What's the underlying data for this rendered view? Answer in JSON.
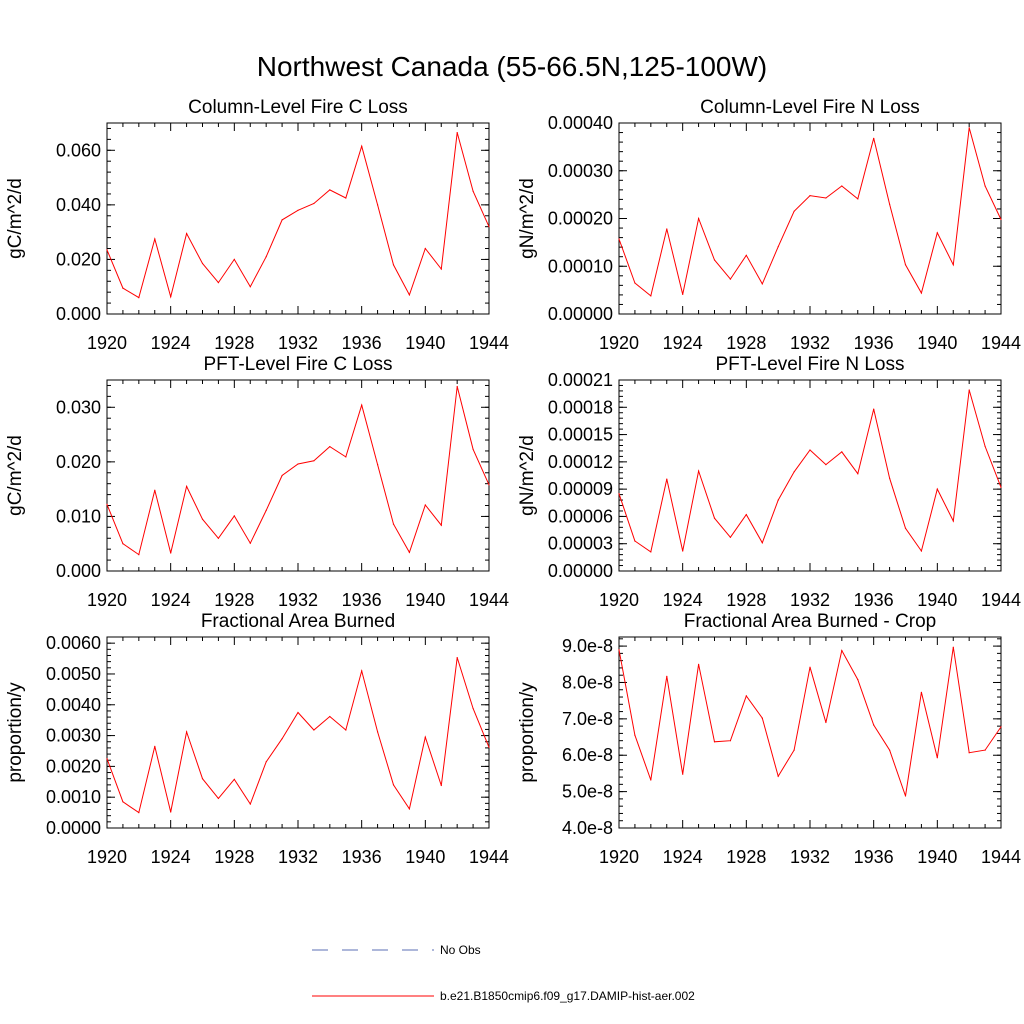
{
  "figure": {
    "title": "Northwest Canada (55-66.5N,125-100W)",
    "legend": [
      {
        "label": "No Obs",
        "color": "#5b6fb5",
        "style": "dashed"
      },
      {
        "label": "b.e21.B1850cmip6.f09_g17.DAMIP-hist-aer.002",
        "color": "#ff0000",
        "style": "solid"
      }
    ]
  },
  "chart_data": [
    {
      "type": "line",
      "title": "Column-Level Fire C Loss",
      "xlabel": "",
      "ylabel": "gC/m^2/d",
      "xlim": [
        1920,
        1944
      ],
      "ylim": [
        0,
        0.07
      ],
      "xticks": [
        1920,
        1924,
        1928,
        1932,
        1936,
        1940,
        1944
      ],
      "yticks": [
        0,
        0.02,
        0.04,
        0.06
      ],
      "ytick_labels": [
        "0.000",
        "0.020",
        "0.040",
        "0.060"
      ],
      "series": [
        {
          "name": "b.e21.B1850cmip6.f09_g17.DAMIP-hist-aer.002",
          "color": "#ff0000",
          "x": [
            1920,
            1921,
            1922,
            1923,
            1924,
            1925,
            1926,
            1927,
            1928,
            1929,
            1930,
            1931,
            1932,
            1933,
            1934,
            1935,
            1936,
            1937,
            1938,
            1939,
            1940,
            1941,
            1942,
            1943,
            1944
          ],
          "y": [
            0.0235,
            0.0095,
            0.006,
            0.0275,
            0.0063,
            0.0295,
            0.0185,
            0.0115,
            0.02,
            0.01,
            0.021,
            0.0345,
            0.038,
            0.0405,
            0.0455,
            0.0425,
            0.0615,
            0.04,
            0.018,
            0.007,
            0.024,
            0.0165,
            0.0665,
            0.045,
            0.032
          ]
        }
      ]
    },
    {
      "type": "line",
      "title": "Column-Level Fire N Loss",
      "xlabel": "",
      "ylabel": "gN/m^2/d",
      "xlim": [
        1920,
        1944
      ],
      "ylim": [
        0,
        0.0004
      ],
      "xticks": [
        1920,
        1924,
        1928,
        1932,
        1936,
        1940,
        1944
      ],
      "yticks": [
        0,
        0.0001,
        0.0002,
        0.0003,
        0.0004
      ],
      "ytick_labels": [
        "0.00000",
        "0.00010",
        "0.00020",
        "0.00030",
        "0.00040"
      ],
      "series": [
        {
          "name": "b.e21.B1850cmip6.f09_g17.DAMIP-hist-aer.002",
          "color": "#ff0000",
          "x": [
            1920,
            1921,
            1922,
            1923,
            1924,
            1925,
            1926,
            1927,
            1928,
            1929,
            1930,
            1931,
            1932,
            1933,
            1934,
            1935,
            1936,
            1937,
            1938,
            1939,
            1940,
            1941,
            1942,
            1943,
            1944
          ],
          "y": [
            0.000157,
            6.5e-05,
            3.8e-05,
            0.000178,
            4.1e-05,
            0.0002,
            0.000113,
            7.3e-05,
            0.000123,
            6.3e-05,
            0.000141,
            0.000215,
            0.000248,
            0.000243,
            0.000268,
            0.000241,
            0.000368,
            0.00023,
            0.000103,
            4.4e-05,
            0.00017,
            0.000103,
            0.00039,
            0.000268,
            0.000198
          ]
        }
      ]
    },
    {
      "type": "line",
      "title": "PFT-Level Fire C Loss",
      "xlabel": "",
      "ylabel": "gC/m^2/d",
      "xlim": [
        1920,
        1944
      ],
      "ylim": [
        0,
        0.035
      ],
      "xticks": [
        1920,
        1924,
        1928,
        1932,
        1936,
        1940,
        1944
      ],
      "yticks": [
        0,
        0.01,
        0.02,
        0.03
      ],
      "ytick_labels": [
        "0.000",
        "0.010",
        "0.020",
        "0.030"
      ],
      "series": [
        {
          "name": "b.e21.B1850cmip6.f09_g17.DAMIP-hist-aer.002",
          "color": "#ff0000",
          "x": [
            1920,
            1921,
            1922,
            1923,
            1924,
            1925,
            1926,
            1927,
            1928,
            1929,
            1930,
            1931,
            1932,
            1933,
            1934,
            1935,
            1936,
            1937,
            1938,
            1939,
            1940,
            1941,
            1942,
            1943,
            1944
          ],
          "y": [
            0.0122,
            0.005,
            0.003,
            0.0148,
            0.0033,
            0.0155,
            0.0095,
            0.006,
            0.0101,
            0.0051,
            0.0111,
            0.0175,
            0.0196,
            0.0202,
            0.0228,
            0.0209,
            0.0304,
            0.0195,
            0.0086,
            0.0034,
            0.0121,
            0.0084,
            0.0338,
            0.0223,
            0.0158
          ]
        }
      ]
    },
    {
      "type": "line",
      "title": "PFT-Level Fire N Loss",
      "xlabel": "",
      "ylabel": "gN/m^2/d",
      "xlim": [
        1920,
        1944
      ],
      "ylim": [
        0,
        0.00021
      ],
      "xticks": [
        1920,
        1924,
        1928,
        1932,
        1936,
        1940,
        1944
      ],
      "yticks": [
        0,
        3e-05,
        6e-05,
        9e-05,
        0.00012,
        0.00015,
        0.00018,
        0.00021
      ],
      "ytick_labels": [
        "0.00000",
        "0.00003",
        "0.00006",
        "0.00009",
        "0.00012",
        "0.00015",
        "0.00018",
        "0.00021"
      ],
      "series": [
        {
          "name": "b.e21.B1850cmip6.f09_g17.DAMIP-hist-aer.002",
          "color": "#ff0000",
          "x": [
            1920,
            1921,
            1922,
            1923,
            1924,
            1925,
            1926,
            1927,
            1928,
            1929,
            1930,
            1931,
            1932,
            1933,
            1934,
            1935,
            1936,
            1937,
            1938,
            1939,
            1940,
            1941,
            1942,
            1943,
            1944
          ],
          "y": [
            8.5e-05,
            3.3e-05,
            2.1e-05,
            0.000101,
            2.2e-05,
            0.00011,
            5.8e-05,
            3.7e-05,
            6.2e-05,
            3.1e-05,
            7.8e-05,
            0.000109,
            0.000133,
            0.000117,
            0.000131,
            0.000107,
            0.000178,
            0.000102,
            4.7e-05,
            2.2e-05,
            9e-05,
            5.5e-05,
            0.000199,
            0.000137,
            9.2e-05
          ]
        }
      ]
    },
    {
      "type": "line",
      "title": "Fractional Area Burned",
      "xlabel": "",
      "ylabel": "proportion/y",
      "xlim": [
        1920,
        1944
      ],
      "ylim": [
        0,
        0.0062
      ],
      "xticks": [
        1920,
        1924,
        1928,
        1932,
        1936,
        1940,
        1944
      ],
      "yticks": [
        0,
        0.001,
        0.002,
        0.003,
        0.004,
        0.005,
        0.006
      ],
      "ytick_labels": [
        "0.0000",
        "0.0010",
        "0.0020",
        "0.0030",
        "0.0040",
        "0.0050",
        "0.0060"
      ],
      "series": [
        {
          "name": "b.e21.B1850cmip6.f09_g17.DAMIP-hist-aer.002",
          "color": "#ff0000",
          "x": [
            1920,
            1921,
            1922,
            1923,
            1924,
            1925,
            1926,
            1927,
            1928,
            1929,
            1930,
            1931,
            1932,
            1933,
            1934,
            1935,
            1936,
            1937,
            1938,
            1939,
            1940,
            1941,
            1942,
            1943,
            1944
          ],
          "y": [
            0.00225,
            0.00085,
            0.0005,
            0.00265,
            0.00052,
            0.00312,
            0.0016,
            0.00096,
            0.00158,
            0.00078,
            0.00215,
            0.0029,
            0.00375,
            0.00318,
            0.00362,
            0.00318,
            0.0051,
            0.00312,
            0.0014,
            0.00062,
            0.00295,
            0.00138,
            0.00553,
            0.00388,
            0.00262
          ]
        }
      ]
    },
    {
      "type": "line",
      "title": "Fractional Area Burned - Crop",
      "xlabel": "",
      "ylabel": "proportion/y",
      "xlim": [
        1920,
        1944
      ],
      "ylim": [
        4e-08,
        9.25e-08
      ],
      "xticks": [
        1920,
        1924,
        1928,
        1932,
        1936,
        1940,
        1944
      ],
      "yticks": [
        4e-08,
        5e-08,
        6e-08,
        7e-08,
        8e-08,
        9e-08
      ],
      "ytick_labels": [
        "4.0e-8",
        "5.0e-8",
        "6.0e-8",
        "7.0e-8",
        "8.0e-8",
        "9.0e-8"
      ],
      "series": [
        {
          "name": "b.e21.B1850cmip6.f09_g17.DAMIP-hist-aer.002",
          "color": "#ff0000",
          "x": [
            1920,
            1921,
            1922,
            1923,
            1924,
            1925,
            1926,
            1927,
            1928,
            1929,
            1930,
            1931,
            1932,
            1933,
            1934,
            1935,
            1936,
            1937,
            1938,
            1939,
            1940,
            1941,
            1942,
            1943,
            1944
          ],
          "y": [
            8.9e-08,
            6.55e-08,
            5.32e-08,
            8.17e-08,
            5.48e-08,
            8.5e-08,
            6.37e-08,
            6.4e-08,
            7.63e-08,
            7.02e-08,
            5.42e-08,
            6.14e-08,
            8.42e-08,
            6.9e-08,
            8.88e-08,
            8.08e-08,
            6.83e-08,
            6.14e-08,
            4.88e-08,
            7.73e-08,
            5.93e-08,
            8.97e-08,
            6.07e-08,
            6.14e-08,
            6.78e-08
          ]
        }
      ]
    }
  ]
}
